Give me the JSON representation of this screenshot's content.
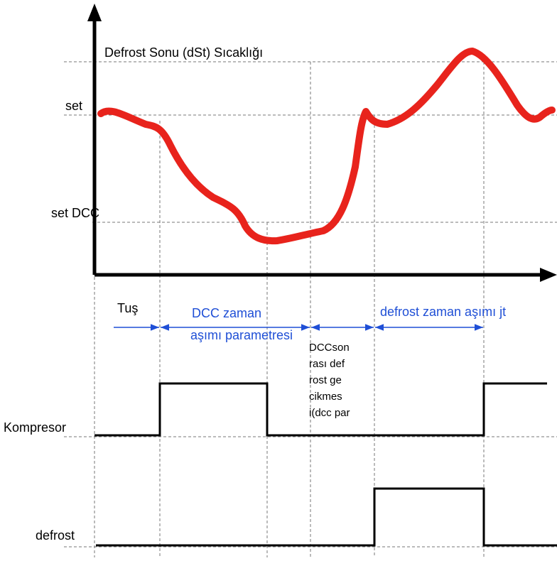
{
  "title": "Defrost  Sonu  (dSt)  Sıcaklığı",
  "levels": {
    "set": "set",
    "set_dcc": "set DCC"
  },
  "intervals": {
    "key": "Tuş",
    "dcc_timeout": [
      "DCC zaman",
      "aşımı parametresi"
    ],
    "defrost_timeout": "defrost zaman aşımı jt",
    "after_dcc": [
      "DCCson",
      "rası def",
      "rost ge",
      "cikmes",
      "i(dcc par"
    ]
  },
  "signals": {
    "compressor": "Kompresor",
    "defrost": "defrost"
  }
}
